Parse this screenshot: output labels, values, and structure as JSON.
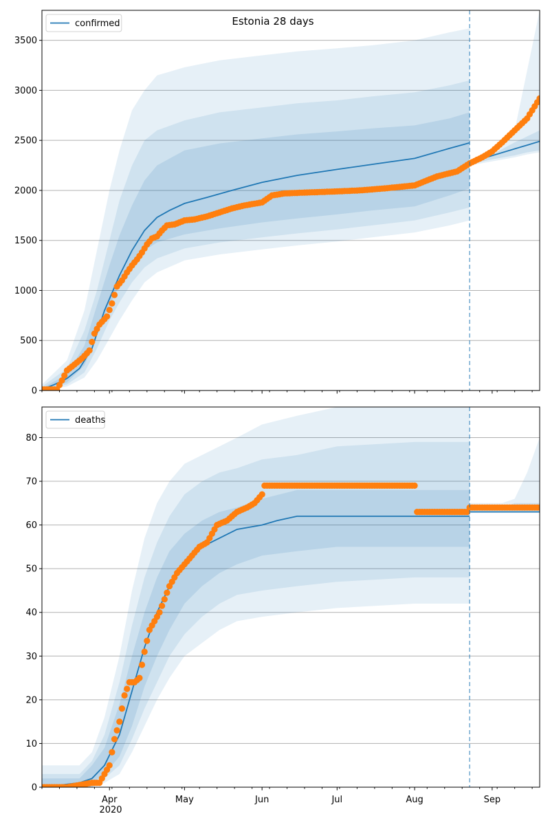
{
  "figure": {
    "title": "Estonia 28 days",
    "x_year_label": "2020"
  },
  "colors": {
    "band": "#1f77b4",
    "median": "#1f77b4",
    "observed": "#ff7f0e",
    "grid": "#b0b0b0"
  },
  "chart_data": [
    {
      "type": "line",
      "panel": "top",
      "legend": [
        "confirmed"
      ],
      "legend_position": "upper-left",
      "grid": "horizontal",
      "xlim": [
        "2020-03-05",
        "2020-09-20"
      ],
      "x_ticks": [
        "2020-04-01",
        "2020-05-01",
        "2020-06-01",
        "2020-07-01",
        "2020-08-01",
        "2020-09-01"
      ],
      "x_tick_labels": [
        "Apr",
        "May",
        "Jun",
        "Jul",
        "Aug",
        "Sep"
      ],
      "ylim": [
        0,
        3800
      ],
      "y_ticks": [
        0,
        500,
        1000,
        1500,
        2000,
        2500,
        3000,
        3500
      ],
      "forecast_start": "2020-08-23",
      "series": [
        {
          "name": "confirmed",
          "kind": "median",
          "x": [
            "2020-03-05",
            "2020-03-10",
            "2020-03-15",
            "2020-03-20",
            "2020-03-25",
            "2020-03-30",
            "2020-04-05",
            "2020-04-10",
            "2020-04-15",
            "2020-04-20",
            "2020-04-25",
            "2020-05-01",
            "2020-05-10",
            "2020-05-20",
            "2020-06-01",
            "2020-06-15",
            "2020-07-01",
            "2020-07-15",
            "2020-08-01",
            "2020-08-15",
            "2020-08-23"
          ],
          "values": [
            10,
            60,
            120,
            220,
            420,
            800,
            1150,
            1400,
            1600,
            1730,
            1800,
            1870,
            1930,
            2000,
            2080,
            2150,
            2210,
            2260,
            2320,
            2420,
            2475
          ]
        },
        {
          "kind": "median-after",
          "x": [
            "2020-08-23",
            "2020-09-20"
          ],
          "values": [
            2280,
            2490
          ]
        },
        {
          "kind": "bands",
          "x": [
            "2020-03-05",
            "2020-03-15",
            "2020-03-22",
            "2020-03-27",
            "2020-04-01",
            "2020-04-05",
            "2020-04-10",
            "2020-04-15",
            "2020-04-20",
            "2020-05-01",
            "2020-05-15",
            "2020-06-01",
            "2020-06-15",
            "2020-07-01",
            "2020-07-15",
            "2020-08-01",
            "2020-08-15",
            "2020-08-23"
          ],
          "upper_outer": [
            60,
            300,
            800,
            1400,
            2000,
            2400,
            2800,
            3000,
            3150,
            3230,
            3300,
            3350,
            3390,
            3420,
            3450,
            3500,
            3580,
            3620
          ],
          "upper_mid": [
            40,
            220,
            600,
            1000,
            1500,
            1900,
            2250,
            2500,
            2600,
            2700,
            2780,
            2830,
            2870,
            2900,
            2940,
            2980,
            3050,
            3100
          ],
          "upper_inner": [
            25,
            160,
            450,
            850,
            1250,
            1550,
            1850,
            2100,
            2250,
            2400,
            2470,
            2520,
            2560,
            2590,
            2620,
            2650,
            2720,
            2780
          ],
          "lower_inner": [
            0,
            80,
            250,
            550,
            850,
            1050,
            1250,
            1400,
            1480,
            1560,
            1620,
            1680,
            1720,
            1760,
            1800,
            1840,
            1950,
            2020
          ],
          "lower_mid": [
            0,
            60,
            180,
            420,
            700,
            880,
            1080,
            1230,
            1320,
            1420,
            1480,
            1530,
            1570,
            1610,
            1650,
            1700,
            1780,
            1830
          ],
          "lower_outer": [
            0,
            40,
            130,
            300,
            520,
            700,
            900,
            1080,
            1180,
            1300,
            1360,
            1410,
            1450,
            1490,
            1530,
            1580,
            1650,
            1700
          ]
        },
        {
          "kind": "bands-after",
          "x": [
            "2020-08-23",
            "2020-09-01",
            "2020-09-10",
            "2020-09-15",
            "2020-09-20"
          ],
          "upper_outer": [
            2300,
            2380,
            2600,
            3200,
            3800
          ],
          "upper_mid": [
            2290,
            2360,
            2480,
            2540,
            2600
          ],
          "lower_mid": [
            2260,
            2310,
            2350,
            2380,
            2400
          ],
          "lower_outer": [
            2250,
            2290,
            2330,
            2360,
            2380
          ]
        },
        {
          "name": "observed",
          "kind": "points",
          "x": [
            "2020-03-05",
            "2020-03-08",
            "2020-03-11",
            "2020-03-13",
            "2020-03-15",
            "2020-03-18",
            "2020-03-21",
            "2020-03-24",
            "2020-03-26",
            "2020-03-28",
            "2020-03-31",
            "2020-04-02",
            "2020-04-04",
            "2020-04-06",
            "2020-04-08",
            "2020-04-10",
            "2020-04-12",
            "2020-04-14",
            "2020-04-16",
            "2020-04-18",
            "2020-04-20",
            "2020-04-22",
            "2020-04-24",
            "2020-04-27",
            "2020-05-01",
            "2020-05-05",
            "2020-05-10",
            "2020-05-15",
            "2020-05-20",
            "2020-05-25",
            "2020-06-01",
            "2020-06-05",
            "2020-06-10",
            "2020-06-20",
            "2020-07-01",
            "2020-07-10",
            "2020-07-20",
            "2020-08-01",
            "2020-08-10",
            "2020-08-18",
            "2020-08-23",
            "2020-08-28",
            "2020-09-01",
            "2020-09-05",
            "2020-09-10",
            "2020-09-15",
            "2020-09-20"
          ],
          "values": [
            10,
            10,
            10,
            100,
            200,
            260,
            320,
            400,
            570,
            660,
            740,
            870,
            1040,
            1100,
            1180,
            1250,
            1310,
            1380,
            1460,
            1520,
            1540,
            1600,
            1650,
            1660,
            1700,
            1710,
            1740,
            1780,
            1820,
            1850,
            1880,
            1950,
            1970,
            1980,
            1990,
            2000,
            2020,
            2050,
            2140,
            2190,
            2270,
            2330,
            2390,
            2480,
            2600,
            2720,
            2920
          ]
        }
      ]
    },
    {
      "type": "line",
      "panel": "bottom",
      "legend": [
        "deaths"
      ],
      "legend_position": "upper-left",
      "grid": "horizontal",
      "xlim": [
        "2020-03-05",
        "2020-09-20"
      ],
      "x_ticks": [
        "2020-04-01",
        "2020-05-01",
        "2020-06-01",
        "2020-07-01",
        "2020-08-01",
        "2020-09-01"
      ],
      "x_tick_labels": [
        "Apr",
        "May",
        "Jun",
        "Jul",
        "Aug",
        "Sep"
      ],
      "ylim": [
        0,
        87
      ],
      "y_ticks": [
        0,
        10,
        20,
        30,
        40,
        50,
        60,
        70,
        80
      ],
      "forecast_start": "2020-08-23",
      "series": [
        {
          "name": "deaths",
          "kind": "median",
          "x": [
            "2020-03-05",
            "2020-03-20",
            "2020-03-25",
            "2020-03-30",
            "2020-04-05",
            "2020-04-10",
            "2020-04-15",
            "2020-04-20",
            "2020-04-25",
            "2020-05-01",
            "2020-05-08",
            "2020-05-15",
            "2020-05-22",
            "2020-06-01",
            "2020-06-07",
            "2020-06-15",
            "2020-08-23"
          ],
          "values": [
            0,
            1,
            2,
            5,
            12,
            22,
            32,
            40,
            46,
            51,
            55,
            57,
            59,
            60,
            61,
            62,
            62
          ]
        },
        {
          "kind": "median-after",
          "x": [
            "2020-08-23",
            "2020-09-20"
          ],
          "values": [
            63,
            63
          ]
        },
        {
          "kind": "bands",
          "x": [
            "2020-03-05",
            "2020-03-20",
            "2020-03-25",
            "2020-03-30",
            "2020-04-05",
            "2020-04-10",
            "2020-04-15",
            "2020-04-20",
            "2020-04-25",
            "2020-05-01",
            "2020-05-08",
            "2020-05-15",
            "2020-05-22",
            "2020-06-01",
            "2020-06-15",
            "2020-07-01",
            "2020-08-01",
            "2020-08-23"
          ],
          "upper_outer": [
            5,
            5,
            8,
            16,
            30,
            45,
            57,
            65,
            70,
            74,
            76,
            78,
            80,
            83,
            85,
            87,
            87,
            87
          ],
          "upper_mid": [
            3,
            3,
            6,
            12,
            24,
            37,
            48,
            56,
            62,
            67,
            70,
            72,
            73,
            75,
            76,
            78,
            79,
            79
          ],
          "upper_inner": [
            2,
            2,
            5,
            9,
            19,
            30,
            40,
            48,
            54,
            58,
            61,
            63,
            64,
            66,
            68,
            68,
            68,
            68
          ],
          "lower_inner": [
            0,
            0,
            1,
            3,
            7,
            14,
            23,
            30,
            36,
            42,
            46,
            49,
            51,
            53,
            54,
            55,
            55,
            55
          ],
          "lower_mid": [
            0,
            0,
            0,
            2,
            5,
            11,
            18,
            24,
            30,
            35,
            39,
            42,
            44,
            45,
            46,
            47,
            48,
            48
          ],
          "lower_outer": [
            0,
            0,
            0,
            1,
            3,
            8,
            14,
            20,
            25,
            30,
            33,
            36,
            38,
            39,
            40,
            41,
            42,
            42
          ]
        },
        {
          "kind": "bands-after",
          "x": [
            "2020-08-23",
            "2020-09-05",
            "2020-09-10",
            "2020-09-15",
            "2020-09-20"
          ],
          "upper_outer": [
            65,
            65,
            66,
            72,
            80
          ],
          "upper_mid": [
            64,
            64,
            65,
            65,
            65
          ],
          "lower_mid": [
            63,
            63,
            63,
            63,
            63
          ],
          "lower_outer": [
            63,
            63,
            63,
            63,
            63
          ]
        },
        {
          "name": "observed",
          "kind": "points",
          "x": [
            "2020-03-05",
            "2020-03-15",
            "2020-03-25",
            "2020-03-28",
            "2020-04-01",
            "2020-04-03",
            "2020-04-05",
            "2020-04-07",
            "2020-04-09",
            "2020-04-11",
            "2020-04-13",
            "2020-04-15",
            "2020-04-17",
            "2020-04-19",
            "2020-04-21",
            "2020-04-23",
            "2020-04-25",
            "2020-04-28",
            "2020-05-01",
            "2020-05-04",
            "2020-05-07",
            "2020-05-10",
            "2020-05-14",
            "2020-05-18",
            "2020-05-22",
            "2020-05-26",
            "2020-05-29",
            "2020-06-01",
            "2020-06-02",
            "2020-06-10",
            "2020-07-01",
            "2020-07-20",
            "2020-08-01",
            "2020-08-02",
            "2020-08-15",
            "2020-08-22",
            "2020-08-23",
            "2020-09-01",
            "2020-09-20"
          ],
          "values": [
            0,
            0,
            1,
            1,
            5,
            11,
            15,
            21,
            24,
            24,
            25,
            31,
            36,
            38,
            40,
            43,
            46,
            49,
            51,
            53,
            55,
            56,
            60,
            61,
            63,
            64,
            65,
            67,
            69,
            69,
            69,
            69,
            69,
            63,
            63,
            63,
            64,
            64,
            64
          ]
        }
      ]
    }
  ]
}
